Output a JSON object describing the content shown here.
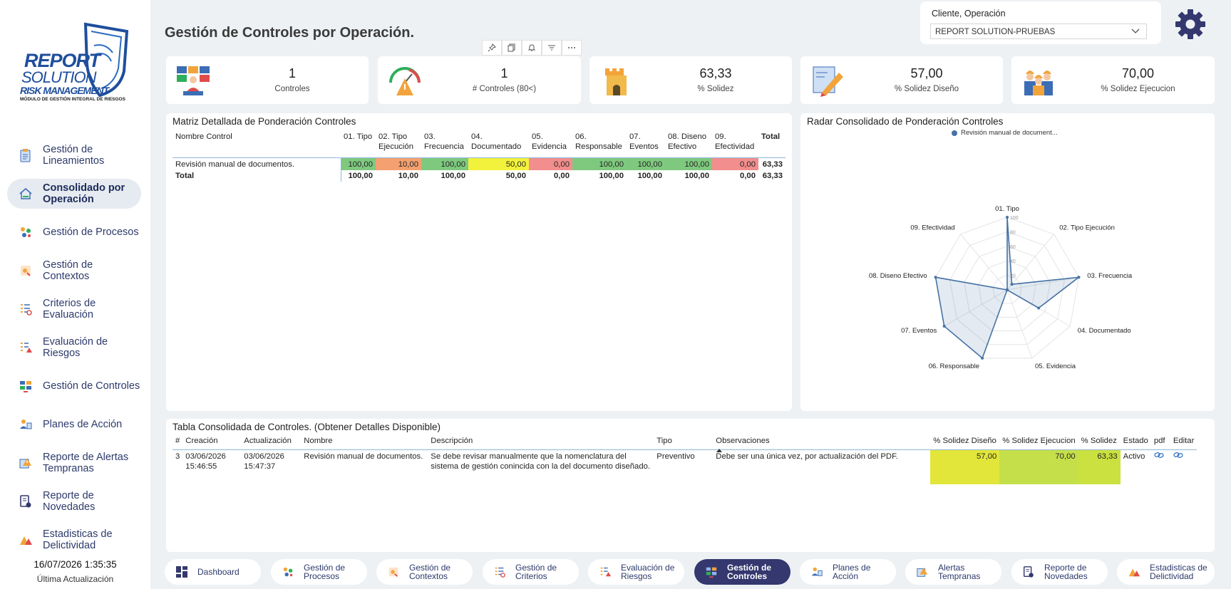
{
  "logo": {
    "line1": "REPORT",
    "line2": "SOLUTION",
    "line3": "RISK MANAGEMENT",
    "line4": "MÓDULO DE GESTIÓN INTEGRAL DE RIESGOS"
  },
  "sidebar": {
    "items": [
      {
        "label": "Gestión de Lineamientos",
        "icon": "clipboard-icon"
      },
      {
        "label": "Consolidado por Operación",
        "icon": "home-icon",
        "active": true
      },
      {
        "label": "Gestión de Procesos",
        "icon": "process-icon"
      },
      {
        "label": "Gestión de Contextos",
        "icon": "context-icon"
      },
      {
        "label": "Criterios de Evaluación",
        "icon": "criteria-icon"
      },
      {
        "label": "Evaluación de Riesgos",
        "icon": "risk-icon"
      },
      {
        "label": "Gestión de Controles",
        "icon": "controls-icon"
      },
      {
        "label": "Planes de Acción",
        "icon": "action-plan-icon"
      },
      {
        "label": "Reporte de Alertas Tempranas",
        "icon": "alert-icon"
      },
      {
        "label": "Reporte de Novedades",
        "icon": "news-icon"
      },
      {
        "label": "Estadisticas de Delictividad",
        "icon": "stats-icon"
      }
    ],
    "update_time": "16/07/2026 1:35:35",
    "update_label": "Última Actualización"
  },
  "header": {
    "title": "Gestión de Controles por Operación.",
    "client_label": "Cliente, Operación",
    "client_value": "REPORT SOLUTION-PRUEBAS"
  },
  "kpis": [
    {
      "value": "1",
      "label": "Controles",
      "icon": "monitor-people-icon"
    },
    {
      "value": "1",
      "label": "# Controles (80<)",
      "icon": "gauge-warning-icon"
    },
    {
      "value": "63,33",
      "label": "% Solidez",
      "icon": "castle-icon"
    },
    {
      "value": "57,00",
      "label": "% Solidez Diseño",
      "icon": "design-pencil-icon"
    },
    {
      "value": "70,00",
      "label": "% Solidez Ejecucion",
      "icon": "workers-icon"
    }
  ],
  "matrix": {
    "title": "Matriz Detallada de Ponderación Controles",
    "headers": [
      "Nombre Control",
      "01. Tipo",
      "02. Tipo Ejecución",
      "03. Frecuencia",
      "04. Documentado",
      "05. Evidencia",
      "06. Responsable",
      "07. Eventos",
      "08. Diseno Efectivo",
      "09. Efectividad",
      "Total"
    ],
    "row": {
      "name": "Revisión manual de documentos.",
      "values": [
        "100,00",
        "10,00",
        "100,00",
        "50,00",
        "0,00",
        "100,00",
        "100,00",
        "100,00",
        "0,00"
      ],
      "total": "63,33"
    },
    "cell_colors": [
      "#7fc97f",
      "#f4a070",
      "#7fc97f",
      "#f2f23c",
      "#f28e8e",
      "#7fc97f",
      "#7fc97f",
      "#7fc97f",
      "#f28e8e"
    ],
    "total_row": {
      "name": "Total",
      "values": [
        "100,00",
        "10,00",
        "100,00",
        "50,00",
        "0,00",
        "100,00",
        "100,00",
        "100,00",
        "0,00"
      ],
      "total": "63,33"
    }
  },
  "radar": {
    "title": "Radar Consolidado de Ponderación Controles",
    "legend": "Revisión manual de document...",
    "scale_labels": [
      "100",
      "80",
      "60",
      "40",
      "20"
    ]
  },
  "chart_data": {
    "type": "radar",
    "title": "Radar Consolidado de Ponderación Controles",
    "categories": [
      "01. Tipo",
      "02. Tipo Ejecución",
      "03. Frecuencia",
      "04. Documentado",
      "05. Evidencia",
      "06. Responsable",
      "07. Eventos",
      "08. Diseno Efectivo",
      "09. Efectividad"
    ],
    "series": [
      {
        "name": "Revisión manual de document...",
        "values": [
          100,
          10,
          100,
          50,
          0,
          100,
          100,
          100,
          0
        ]
      }
    ],
    "range": [
      0,
      100
    ],
    "color": "#4673a4"
  },
  "ctable": {
    "title": "Tabla Consolidada de Controles. (Obtener Detalles Disponible)",
    "headers": [
      "#",
      "Creación",
      "Actualización",
      "Nombre",
      "Descripción",
      "Tipo",
      "Observaciones",
      "% Solidez Diseño",
      "% Solidez Ejecucion",
      "% Solidez",
      "Estado",
      "pdf",
      "Editar"
    ],
    "rows": [
      {
        "num": "3",
        "created": "03/06/2026 15:46:55",
        "updated": "03/06/2026 15:47:37",
        "name": "Revisión manual de documentos.",
        "description": "Se debe revisar manualmente que la nomenclatura del sistema de gestión conincida con la del documento diseñado.",
        "type": "Preventivo",
        "observations": "Debe ser una única vez, por actualización del PDF.",
        "diseno": "57,00",
        "ejecucion": "70,00",
        "solidez": "63,33",
        "estado": "Activo"
      }
    ]
  },
  "bottom_nav": [
    {
      "label": "Dashboard",
      "icon": "dashboard-icon"
    },
    {
      "label": "Gestión de Procesos",
      "icon": "process-icon"
    },
    {
      "label": "Gestión de Contextos",
      "icon": "context-icon"
    },
    {
      "label": "Gestión de Criterios",
      "icon": "criteria-icon"
    },
    {
      "label": "Evaluación de Riesgos",
      "icon": "risk-icon"
    },
    {
      "label": "Gestión de Controles",
      "icon": "controls-icon",
      "active": true
    },
    {
      "label": "Planes de Acción",
      "icon": "action-plan-icon"
    },
    {
      "label": "Alertas Tempranas",
      "icon": "alert-icon"
    },
    {
      "label": "Reporte de Novedades",
      "icon": "news-icon"
    },
    {
      "label": "Estadisticas de Delictividad",
      "icon": "stats-icon"
    }
  ]
}
